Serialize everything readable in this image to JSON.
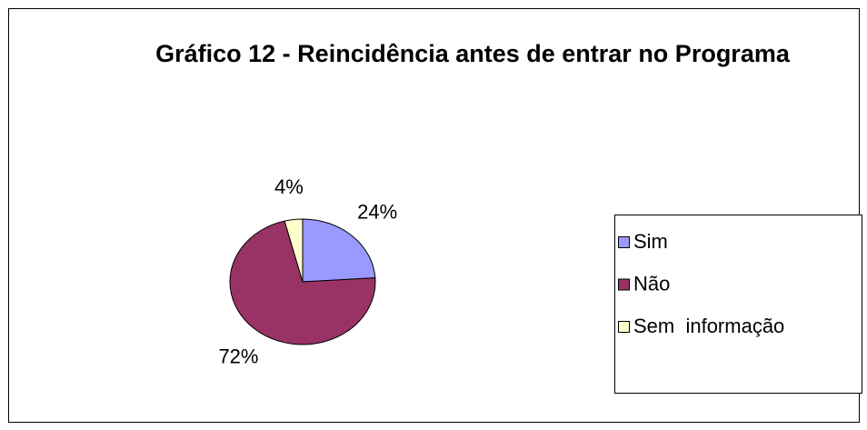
{
  "chart_data": {
    "type": "pie",
    "title": "Gráfico 12 - Reincidência antes de entrar no Programa",
    "categories": [
      "Sim",
      "Não",
      "Sem  informação"
    ],
    "values": [
      24,
      72,
      4
    ],
    "value_labels": [
      "24%",
      "72%",
      "4%"
    ],
    "colors": [
      "#9999ff",
      "#993366",
      "#ffffcc"
    ],
    "legend": "right"
  }
}
